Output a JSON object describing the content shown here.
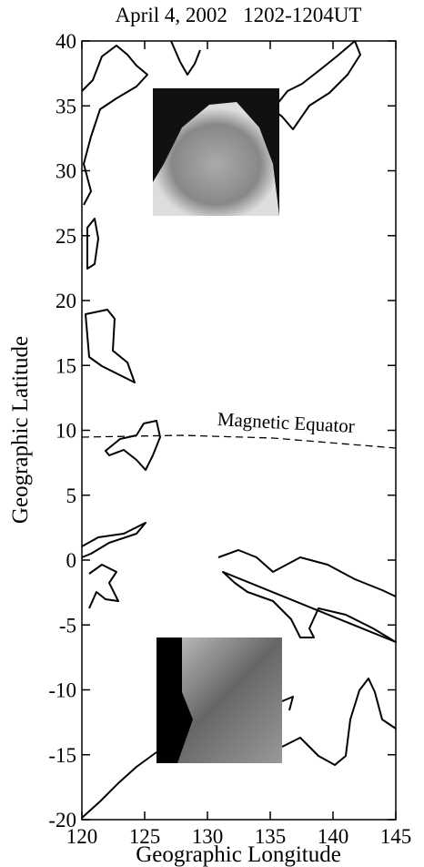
{
  "chart_data": {
    "type": "map",
    "title": "April 4, 2002   1202-1204UT",
    "xlabel": "Geographic Longitude",
    "ylabel": "Geographic Latitude",
    "annotation": "Magnetic Equator",
    "xlim": [
      120,
      145
    ],
    "ylim": [
      -20,
      40
    ],
    "xticks": [
      120,
      125,
      130,
      135,
      140,
      145
    ],
    "yticks": [
      -20,
      -15,
      -10,
      -5,
      0,
      5,
      10,
      15,
      20,
      25,
      30,
      35,
      40
    ]
  }
}
